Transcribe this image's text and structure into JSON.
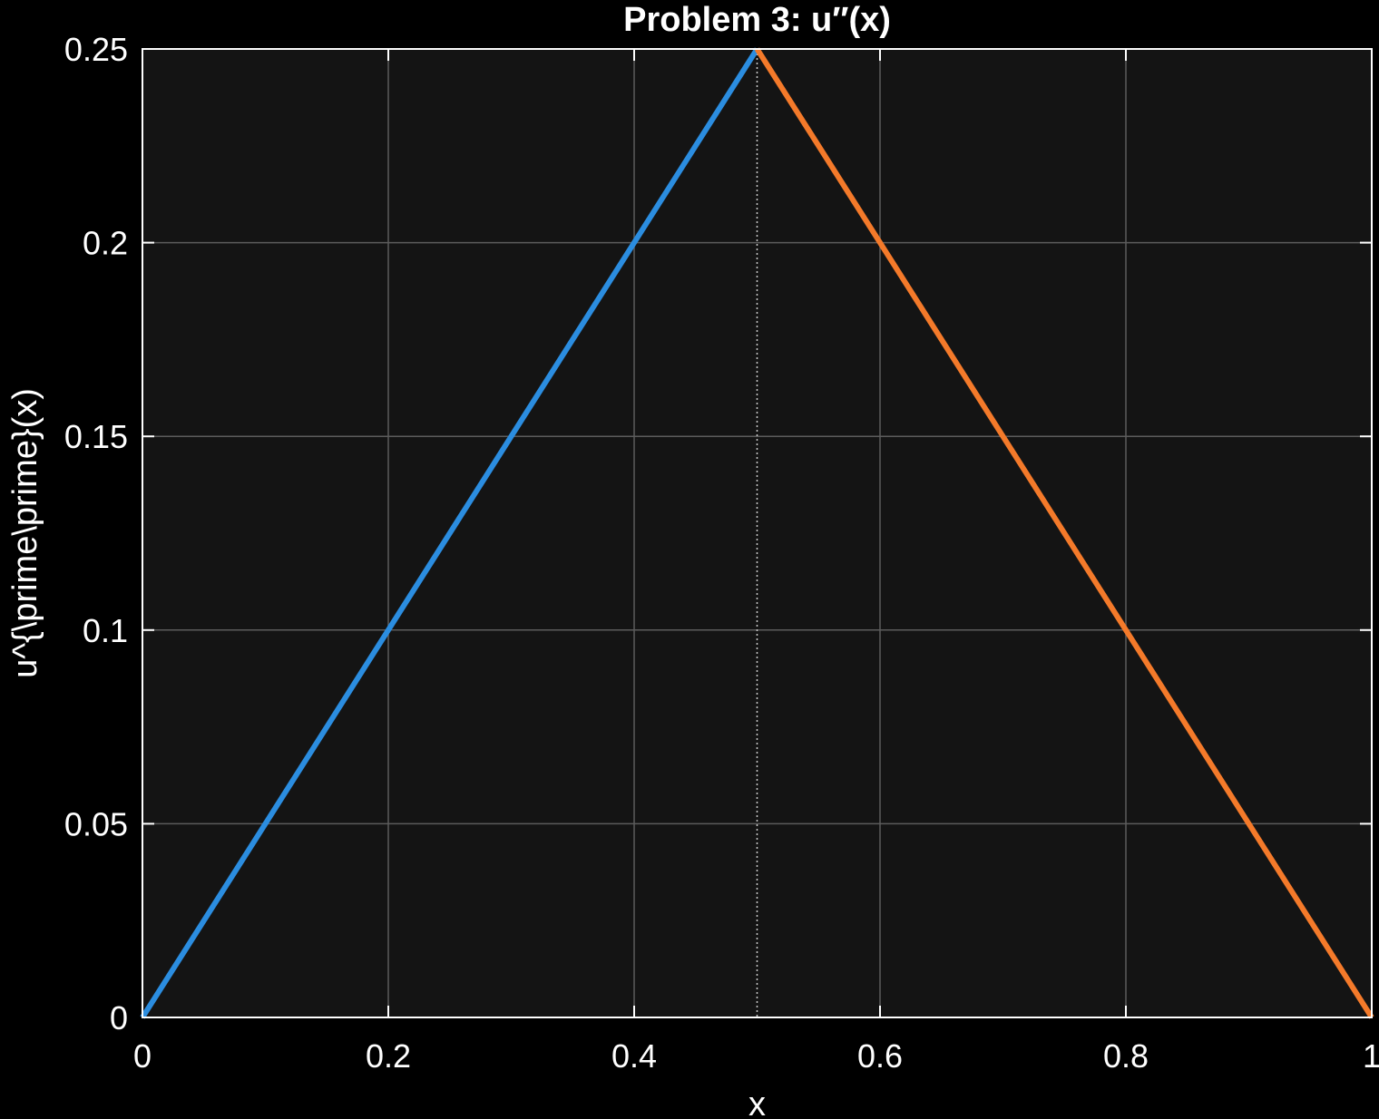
{
  "chart_data": {
    "type": "line",
    "title": "Problem  3:  u″(x)",
    "xlabel": "x",
    "ylabel": "u^{\\prime\\prime}(x)",
    "xlim": [
      0,
      1
    ],
    "ylim": [
      0,
      0.25
    ],
    "xticks": [
      0,
      0.2,
      0.4,
      0.6,
      0.8,
      1
    ],
    "xtick_labels": [
      "0",
      "0.2",
      "0.4",
      "0.6",
      "0.8",
      "1"
    ],
    "yticks": [
      0,
      0.05,
      0.1,
      0.15,
      0.2,
      0.25
    ],
    "ytick_labels": [
      "0",
      "0.05",
      "0.1",
      "0.15",
      "0.2",
      "0.25"
    ],
    "grid": true,
    "vline": {
      "x": 0.5,
      "style": "dotted",
      "color": "#cccccc"
    },
    "series": [
      {
        "x": [
          0,
          0.5
        ],
        "y": [
          0,
          0.25
        ],
        "color": "#2b8de0"
      },
      {
        "x": [
          0.5,
          1
        ],
        "y": [
          0.25,
          0
        ],
        "color": "#f47a2a"
      }
    ],
    "colors": {
      "figure_bg": "#000000",
      "axes_bg": "#141414",
      "grid": "#5c5c5c",
      "axes_frame": "#ffffff",
      "text": "#ffffff"
    }
  }
}
